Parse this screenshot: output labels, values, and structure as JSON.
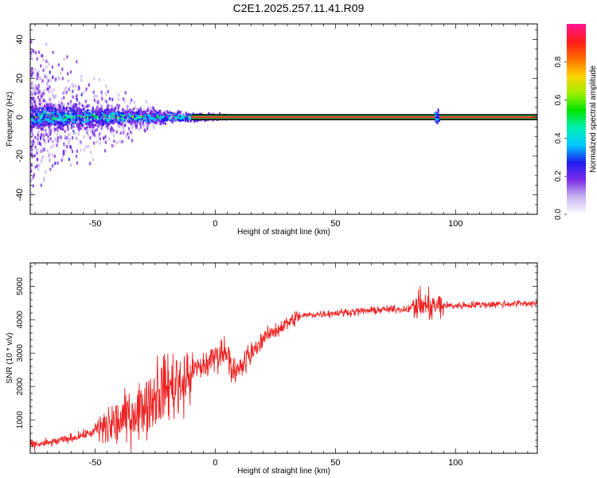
{
  "title": "C2E1.2025.257.11.41.R09",
  "colors": {
    "snr_line": "#ee2222",
    "tonal_line": "#e8302a",
    "background": "#ffffff"
  },
  "chart_data": [
    {
      "type": "heatmap",
      "name": "spectrogram",
      "xlabel": "Height of straight line (km)",
      "ylabel": "Frequency (Hz)",
      "xlim": [
        -77,
        134
      ],
      "ylim": [
        -50,
        48
      ],
      "xticks": [
        -50,
        0,
        50,
        100
      ],
      "yticks": [
        -40,
        -20,
        0,
        20,
        40
      ],
      "tonal_frequency_hz": 0,
      "colorbar": {
        "label": "Normalized spectral amplitude",
        "range": [
          0,
          1
        ],
        "ticks": [
          "0.0",
          "0.2",
          "0.4",
          "0.6",
          "0.8"
        ],
        "colors": [
          "#ffffff",
          "#c8b4f0",
          "#7a2ee6",
          "#1e1ef0",
          "#00c8ff",
          "#00f0b4",
          "#00e400",
          "#a0f000",
          "#ffd200",
          "#ff6a00",
          "#ff1a1a",
          "#ff1493"
        ]
      }
    },
    {
      "type": "line",
      "name": "snr",
      "xlabel": "Height of straight line (km)",
      "ylabel": "SNR (10 * v/v)",
      "xlim": [
        -77,
        134
      ],
      "ylim": [
        0,
        5700
      ],
      "xticks": [
        -50,
        0,
        50,
        100
      ],
      "yticks": [
        1000,
        2000,
        3000,
        4000,
        5000
      ],
      "trend": {
        "x": [
          -77,
          -70,
          -60,
          -50,
          -40,
          -30,
          -20,
          -15,
          -10,
          -5,
          0,
          5,
          8,
          12,
          20,
          30,
          35,
          40,
          50,
          60,
          70,
          80,
          85,
          90,
          95,
          100,
          110,
          120,
          134
        ],
        "y": [
          250,
          300,
          450,
          650,
          950,
          1400,
          2000,
          2100,
          2450,
          2600,
          2900,
          3100,
          2300,
          2700,
          3450,
          3900,
          4100,
          4150,
          4200,
          4250,
          4300,
          4320,
          4450,
          4380,
          4420,
          4420,
          4450,
          4470,
          4500
        ]
      }
    }
  ]
}
